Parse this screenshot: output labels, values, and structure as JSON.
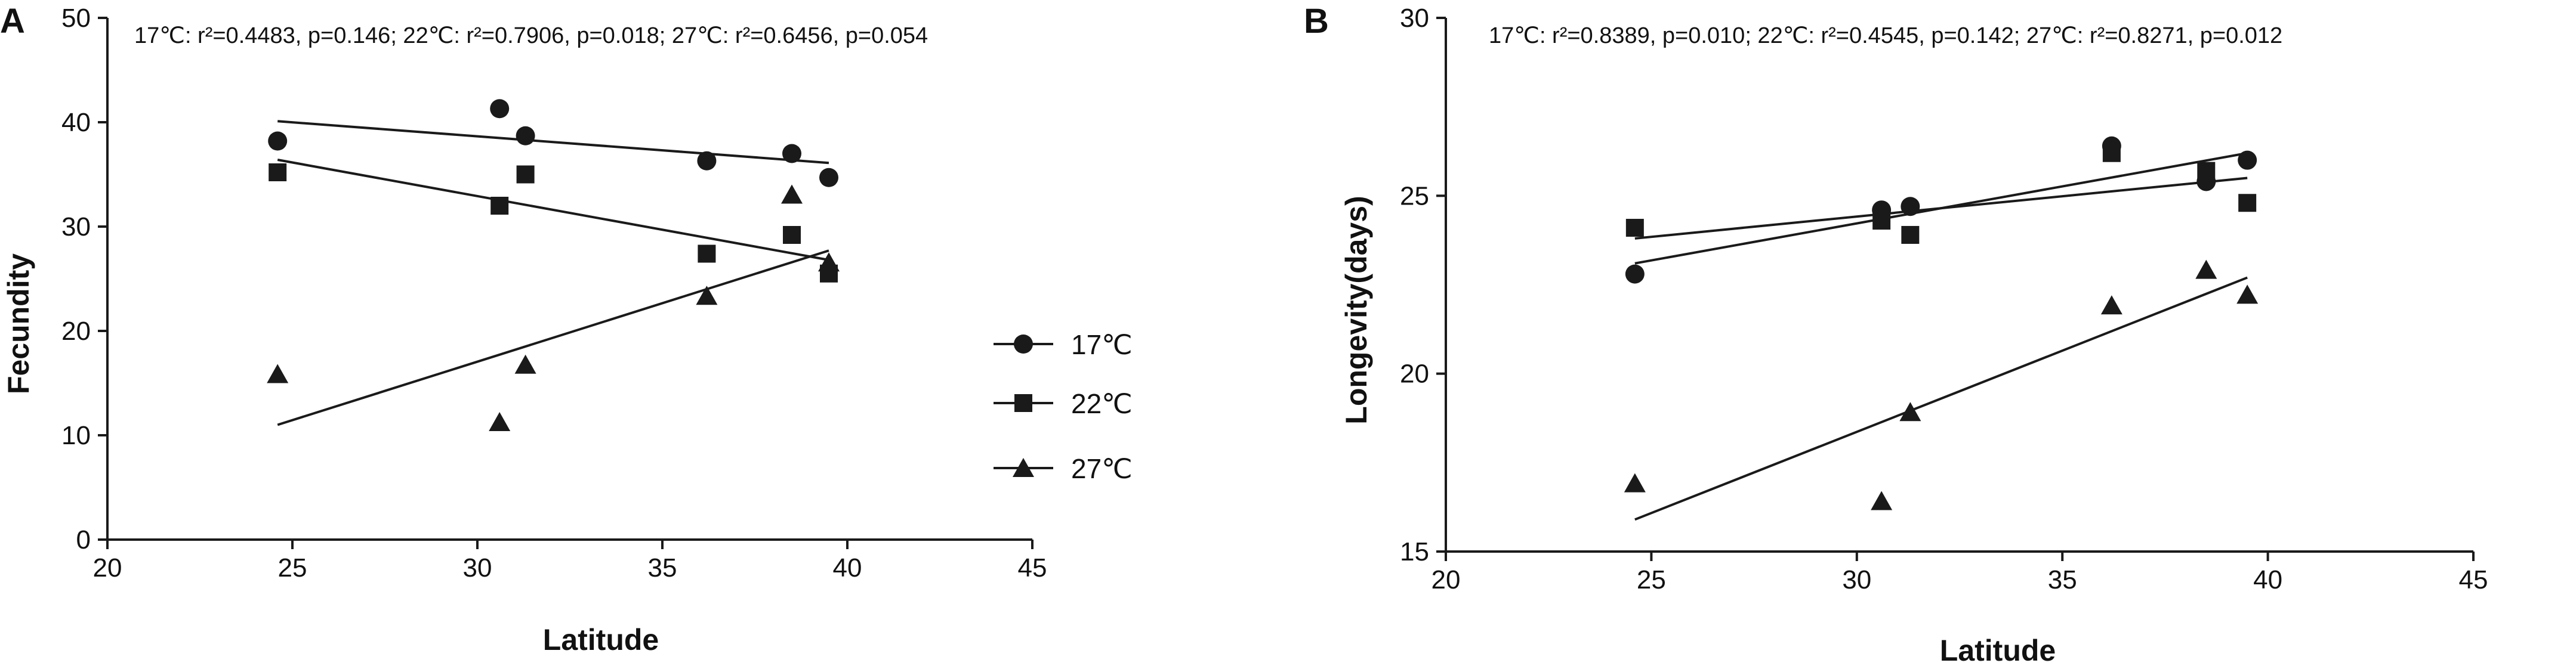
{
  "chart_data": [
    {
      "panel": "A",
      "type": "scatter",
      "stats_text": "17℃: r²=0.4483, p=0.146;  22℃: r²=0.7906, p=0.018; 27℃: r²=0.6456, p=0.054",
      "stats": [
        {
          "temp": "17℃",
          "r2": "0.4483",
          "p": "0.146"
        },
        {
          "temp": "22℃",
          "r2": "0.7906",
          "p": "0.018"
        },
        {
          "temp": "27℃",
          "r2": "0.6456",
          "p": "0.054"
        }
      ],
      "xlabel": "Latitude",
      "ylabel": "Fecundity",
      "xlim": [
        20,
        45
      ],
      "ylim": [
        0,
        50
      ],
      "xticks": [
        "20",
        "25",
        "30",
        "35",
        "40",
        "45"
      ],
      "yticks": [
        "0",
        "10",
        "20",
        "30",
        "40",
        "50"
      ],
      "legend_position": "right",
      "series": [
        {
          "name": "17℃",
          "marker": "circle",
          "x": [
            24.6,
            30.6,
            31.3,
            36.2,
            38.5,
            39.5
          ],
          "y": [
            38.2,
            41.3,
            38.7,
            36.3,
            37.0,
            34.7
          ],
          "fit": {
            "x": [
              24.6,
              39.5
            ],
            "y": [
              40.1,
              36.1
            ]
          }
        },
        {
          "name": "22℃",
          "marker": "square",
          "x": [
            24.6,
            30.6,
            31.3,
            36.2,
            38.5,
            39.5
          ],
          "y": [
            35.2,
            32.0,
            35.0,
            27.4,
            29.2,
            25.5
          ],
          "fit": {
            "x": [
              24.6,
              39.5
            ],
            "y": [
              36.4,
              26.8
            ]
          }
        },
        {
          "name": "27℃",
          "marker": "triangle",
          "x": [
            24.6,
            30.6,
            31.3,
            36.2,
            38.5,
            39.5
          ],
          "y": [
            15.8,
            11.2,
            16.7,
            23.3,
            33.0,
            26.5
          ],
          "fit": {
            "x": [
              24.6,
              39.5
            ],
            "y": [
              11.0,
              27.7
            ]
          }
        }
      ]
    },
    {
      "panel": "B",
      "type": "scatter",
      "stats_text": "17℃: r²=0.8389, p=0.010;   22℃: r²=0.4545, p=0.142;  27℃: r²=0.8271, p=0.012",
      "stats": [
        {
          "temp": "17℃",
          "r2": "0.8389",
          "p": "0.010"
        },
        {
          "temp": "22℃",
          "r2": "0.4545",
          "p": "0.142"
        },
        {
          "temp": "27℃",
          "r2": "0.8271",
          "p": "0.012"
        }
      ],
      "xlabel": "Latitude",
      "ylabel": "Longevity(days)",
      "xlim": [
        20,
        45
      ],
      "ylim": [
        15,
        30
      ],
      "xticks": [
        "20",
        "25",
        "30",
        "35",
        "40",
        "45"
      ],
      "yticks": [
        "15",
        "20",
        "25",
        "30"
      ],
      "series": [
        {
          "name": "17℃",
          "marker": "circle",
          "x": [
            24.6,
            30.6,
            31.3,
            36.2,
            38.5,
            39.5
          ],
          "y": [
            22.8,
            24.6,
            24.7,
            26.4,
            25.4,
            26.0
          ],
          "fit": {
            "x": [
              24.6,
              39.5
            ],
            "y": [
              23.1,
              26.2
            ]
          }
        },
        {
          "name": "22℃",
          "marker": "square",
          "x": [
            24.6,
            30.6,
            31.3,
            36.2,
            38.5,
            39.5
          ],
          "y": [
            24.1,
            24.3,
            23.9,
            26.2,
            25.7,
            24.8
          ],
          "fit": {
            "x": [
              24.6,
              39.5
            ],
            "y": [
              23.8,
              25.5
            ]
          }
        },
        {
          "name": "27℃",
          "marker": "triangle",
          "x": [
            24.6,
            30.6,
            31.3,
            36.2,
            38.5,
            39.5
          ],
          "y": [
            16.9,
            16.4,
            18.9,
            21.9,
            22.9,
            22.2
          ],
          "fit": {
            "x": [
              24.6,
              39.5
            ],
            "y": [
              15.9,
              22.7
            ]
          }
        }
      ]
    }
  ]
}
